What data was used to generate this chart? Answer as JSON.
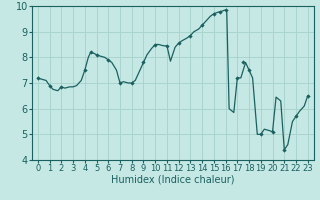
{
  "xlabel": "Humidex (Indice chaleur)",
  "ylabel": "",
  "background_color": "#c5e8e4",
  "grid_color": "#aad4ce",
  "line_color": "#1a6060",
  "marker_color": "#1a6060",
  "xlim": [
    -0.5,
    23.5
  ],
  "ylim": [
    4,
    10
  ],
  "yticks": [
    4,
    5,
    6,
    7,
    8,
    9,
    10
  ],
  "xticks": [
    0,
    1,
    2,
    3,
    4,
    5,
    6,
    7,
    8,
    9,
    10,
    11,
    12,
    13,
    14,
    15,
    16,
    17,
    18,
    19,
    20,
    21,
    22,
    23
  ],
  "x": [
    0,
    0.3,
    0.7,
    1.0,
    1.3,
    1.7,
    2.0,
    2.3,
    2.7,
    3.0,
    3.3,
    3.7,
    4.0,
    4.3,
    4.5,
    4.8,
    5.0,
    5.3,
    5.7,
    6.0,
    6.3,
    6.7,
    7.0,
    7.3,
    7.7,
    8.0,
    8.3,
    8.7,
    9.0,
    9.3,
    9.7,
    10.0,
    10.3,
    10.7,
    11.0,
    11.3,
    11.7,
    12.0,
    12.3,
    12.7,
    13.0,
    13.3,
    13.7,
    14.0,
    14.3,
    14.7,
    15.0,
    15.3,
    15.7,
    16.0,
    16.05,
    16.1,
    16.3,
    16.7,
    17.0,
    17.3,
    17.7,
    18.0,
    18.3,
    18.7,
    19.0,
    19.3,
    19.7,
    20.0,
    20.3,
    20.7,
    21.0,
    21.3,
    21.7,
    22.0,
    22.3,
    22.7,
    23.0
  ],
  "y": [
    7.2,
    7.15,
    7.1,
    6.9,
    6.75,
    6.7,
    6.85,
    6.8,
    6.85,
    6.85,
    6.9,
    7.1,
    7.5,
    8.0,
    8.2,
    8.15,
    8.1,
    8.05,
    8.0,
    7.9,
    7.8,
    7.5,
    7.0,
    7.05,
    7.0,
    7.0,
    7.1,
    7.5,
    7.8,
    8.1,
    8.35,
    8.5,
    8.5,
    8.45,
    8.45,
    7.85,
    8.4,
    8.55,
    8.65,
    8.75,
    8.85,
    9.0,
    9.1,
    9.25,
    9.4,
    9.6,
    9.7,
    9.75,
    9.8,
    9.85,
    9.82,
    9.75,
    6.0,
    5.85,
    7.2,
    7.2,
    7.8,
    7.5,
    7.2,
    5.0,
    5.0,
    5.2,
    5.15,
    5.1,
    6.45,
    6.3,
    4.4,
    4.6,
    5.5,
    5.7,
    5.9,
    6.1,
    6.5
  ],
  "marker_x": [
    0,
    1,
    2,
    4,
    4.5,
    5,
    6,
    7,
    8,
    9,
    10,
    11,
    12,
    13,
    14,
    15,
    15.5,
    16,
    17,
    17.5,
    18,
    19,
    20,
    21,
    22,
    23
  ],
  "marker_y": [
    7.2,
    6.9,
    6.85,
    7.5,
    8.2,
    8.1,
    7.9,
    7.0,
    7.0,
    7.8,
    8.5,
    8.45,
    8.55,
    8.85,
    9.25,
    9.7,
    9.75,
    9.85,
    7.2,
    7.8,
    7.5,
    5.0,
    5.1,
    4.4,
    5.7,
    6.5
  ]
}
